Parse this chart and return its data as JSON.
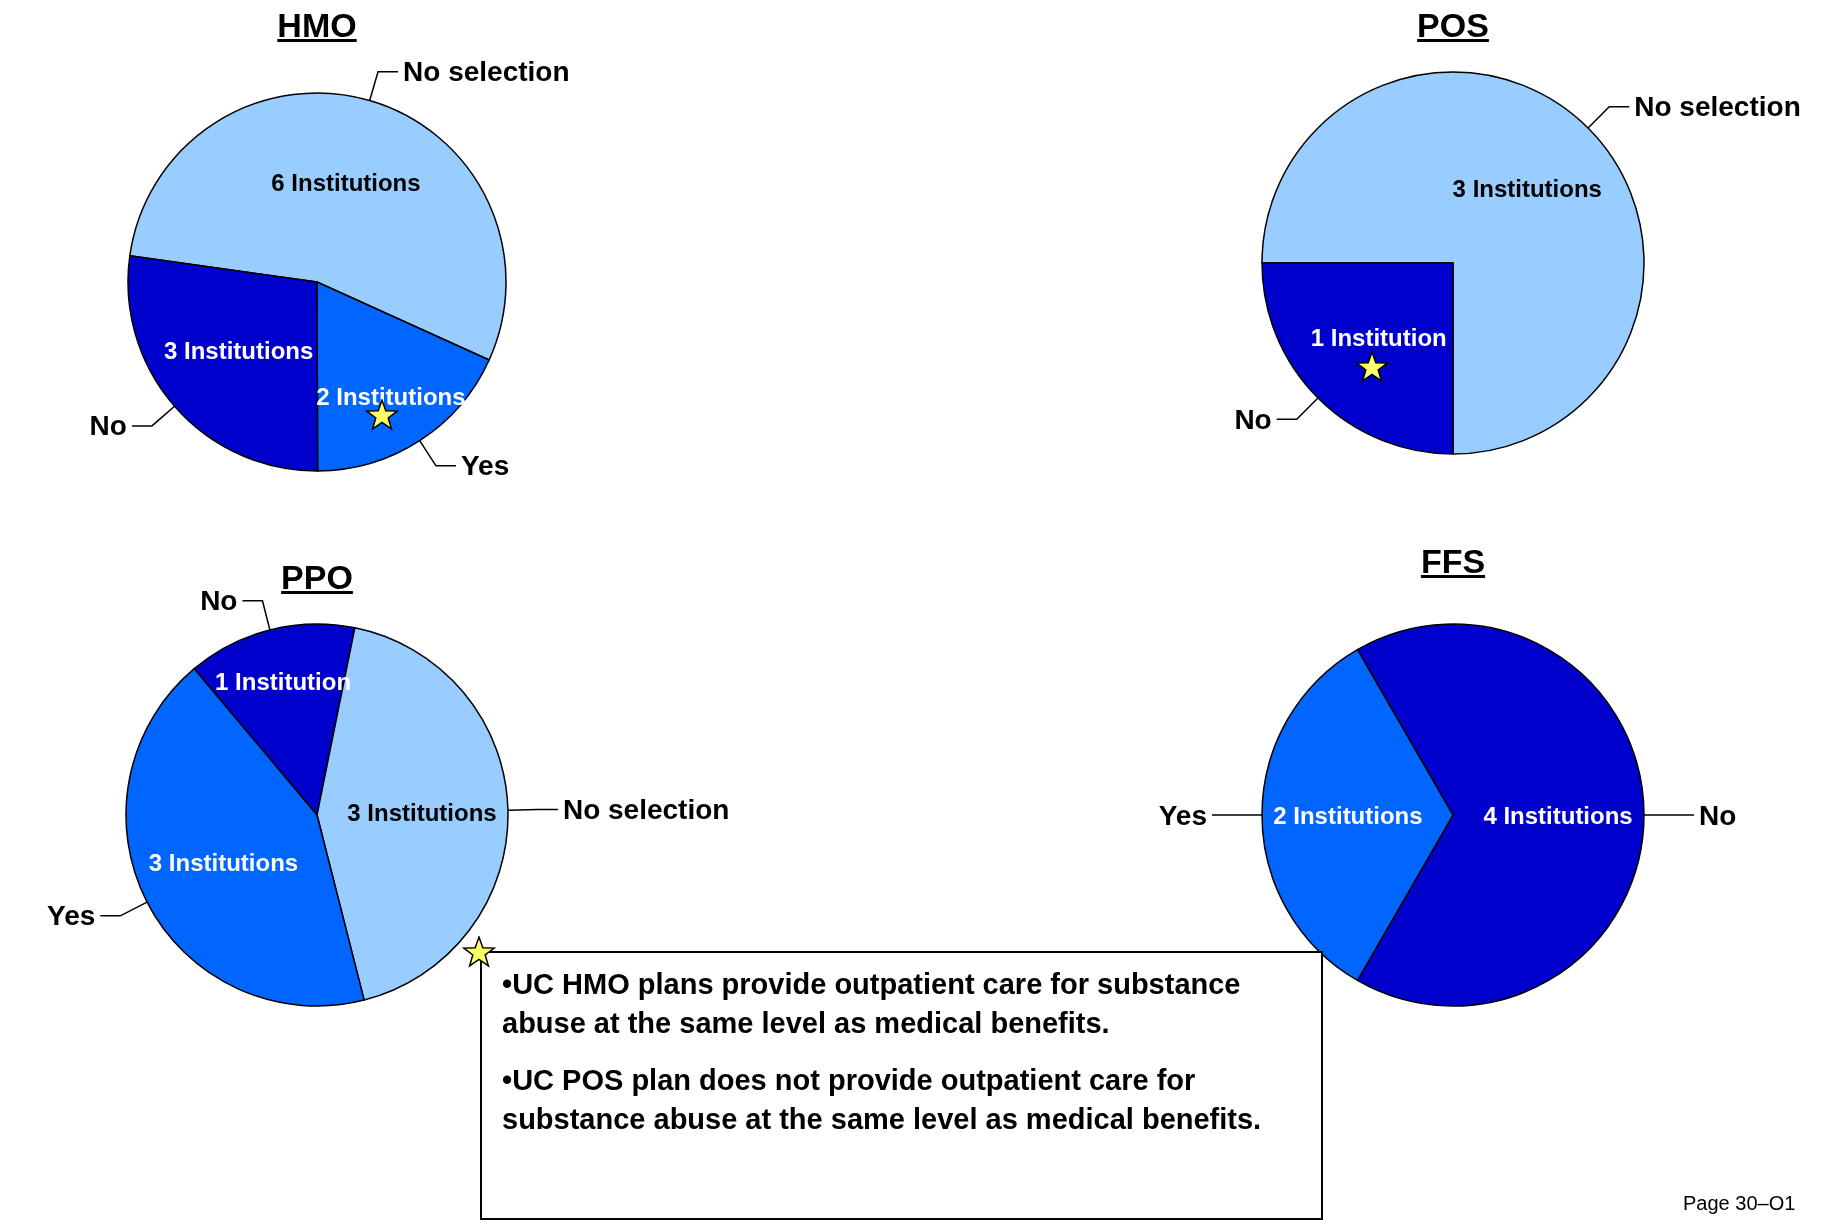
{
  "chart_data": [
    {
      "type": "pie",
      "title": "HMO",
      "categories": [
        "No selection",
        "Yes",
        "No"
      ],
      "values": [
        6,
        2,
        3
      ],
      "colors": [
        "#99ccff",
        "#0066ff",
        "#0000cc"
      ],
      "value_labels": [
        "6 Institutions",
        "2 Institutions",
        "3 Institutions"
      ],
      "annotations": [
        "•UC HMO plans provide outpatient care for substance abuse at the same level as medical benefits.",
        "•UC POS plan does not provide outpatient care for substance abuse at the same level as medical benefits.",
        "Page 30–O1"
      ]
    },
    {
      "type": "pie",
      "title": "POS",
      "categories": [
        "No selection",
        "No"
      ],
      "values": [
        3,
        1
      ],
      "colors": [
        "#99ccff",
        "#0000cc"
      ],
      "value_labels": [
        "3 Institutions",
        "1 Institution"
      ]
    },
    {
      "type": "pie",
      "title": "PPO",
      "categories": [
        "No",
        "No selection",
        "Yes"
      ],
      "values": [
        1,
        3,
        3
      ],
      "colors": [
        "#0000cc",
        "#99ccff",
        "#0066ff"
      ],
      "value_labels": [
        "1 Institution",
        "3 Institutions",
        "3 Institutions"
      ]
    },
    {
      "type": "pie",
      "title": "FFS",
      "categories": [
        "No",
        "Yes"
      ],
      "values": [
        4,
        2
      ],
      "colors": [
        "#0000cc",
        "#0066ff"
      ],
      "value_labels": [
        "4 Institutions",
        "2 Institutions"
      ]
    }
  ]
}
